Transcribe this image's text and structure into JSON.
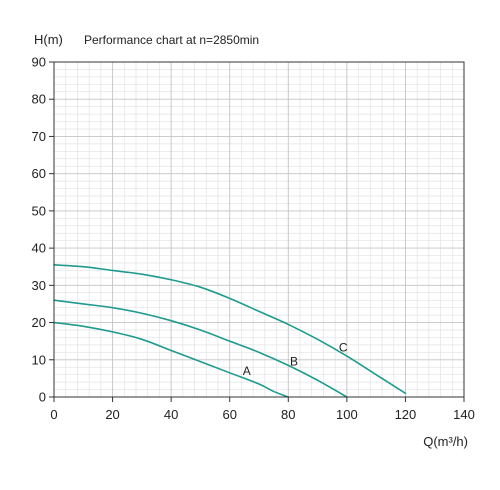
{
  "chart_data": {
    "type": "line",
    "title": "Performance chart at n=2850min",
    "xlabel": "Q(m³/h)",
    "ylabel": "H(m)",
    "xlim": [
      0,
      140
    ],
    "ylim": [
      0,
      90
    ],
    "x_ticks": [
      0,
      20,
      40,
      60,
      80,
      100,
      120,
      140
    ],
    "y_ticks": [
      0,
      10,
      20,
      30,
      40,
      50,
      60,
      70,
      80,
      90
    ],
    "x_tick_labels": [
      "0",
      "20",
      "40",
      "60",
      "80",
      "100",
      "120",
      "140"
    ],
    "y_tick_labels": [
      "0",
      "10",
      "20",
      "30",
      "40",
      "50",
      "60",
      "70",
      "80",
      "90"
    ],
    "grid": true,
    "line_color": "#1f9a8f",
    "series": [
      {
        "name": "A",
        "x": [
          0,
          10,
          20,
          30,
          40,
          50,
          60,
          70,
          75,
          80
        ],
        "y": [
          20,
          19,
          17.5,
          15.5,
          12.5,
          9.5,
          6.5,
          3.5,
          1.5,
          0
        ]
      },
      {
        "name": "B",
        "x": [
          0,
          10,
          20,
          30,
          40,
          50,
          60,
          70,
          80,
          90,
          100
        ],
        "y": [
          26,
          25,
          24,
          22.5,
          20.5,
          18,
          15,
          12,
          8.5,
          4.5,
          0
        ]
      },
      {
        "name": "C",
        "x": [
          0,
          10,
          20,
          30,
          40,
          50,
          60,
          70,
          80,
          90,
          100,
          110,
          120
        ],
        "y": [
          35.5,
          35,
          34,
          33,
          31.5,
          29.5,
          26.5,
          23,
          19.5,
          15.5,
          11,
          6,
          1
        ]
      }
    ]
  }
}
